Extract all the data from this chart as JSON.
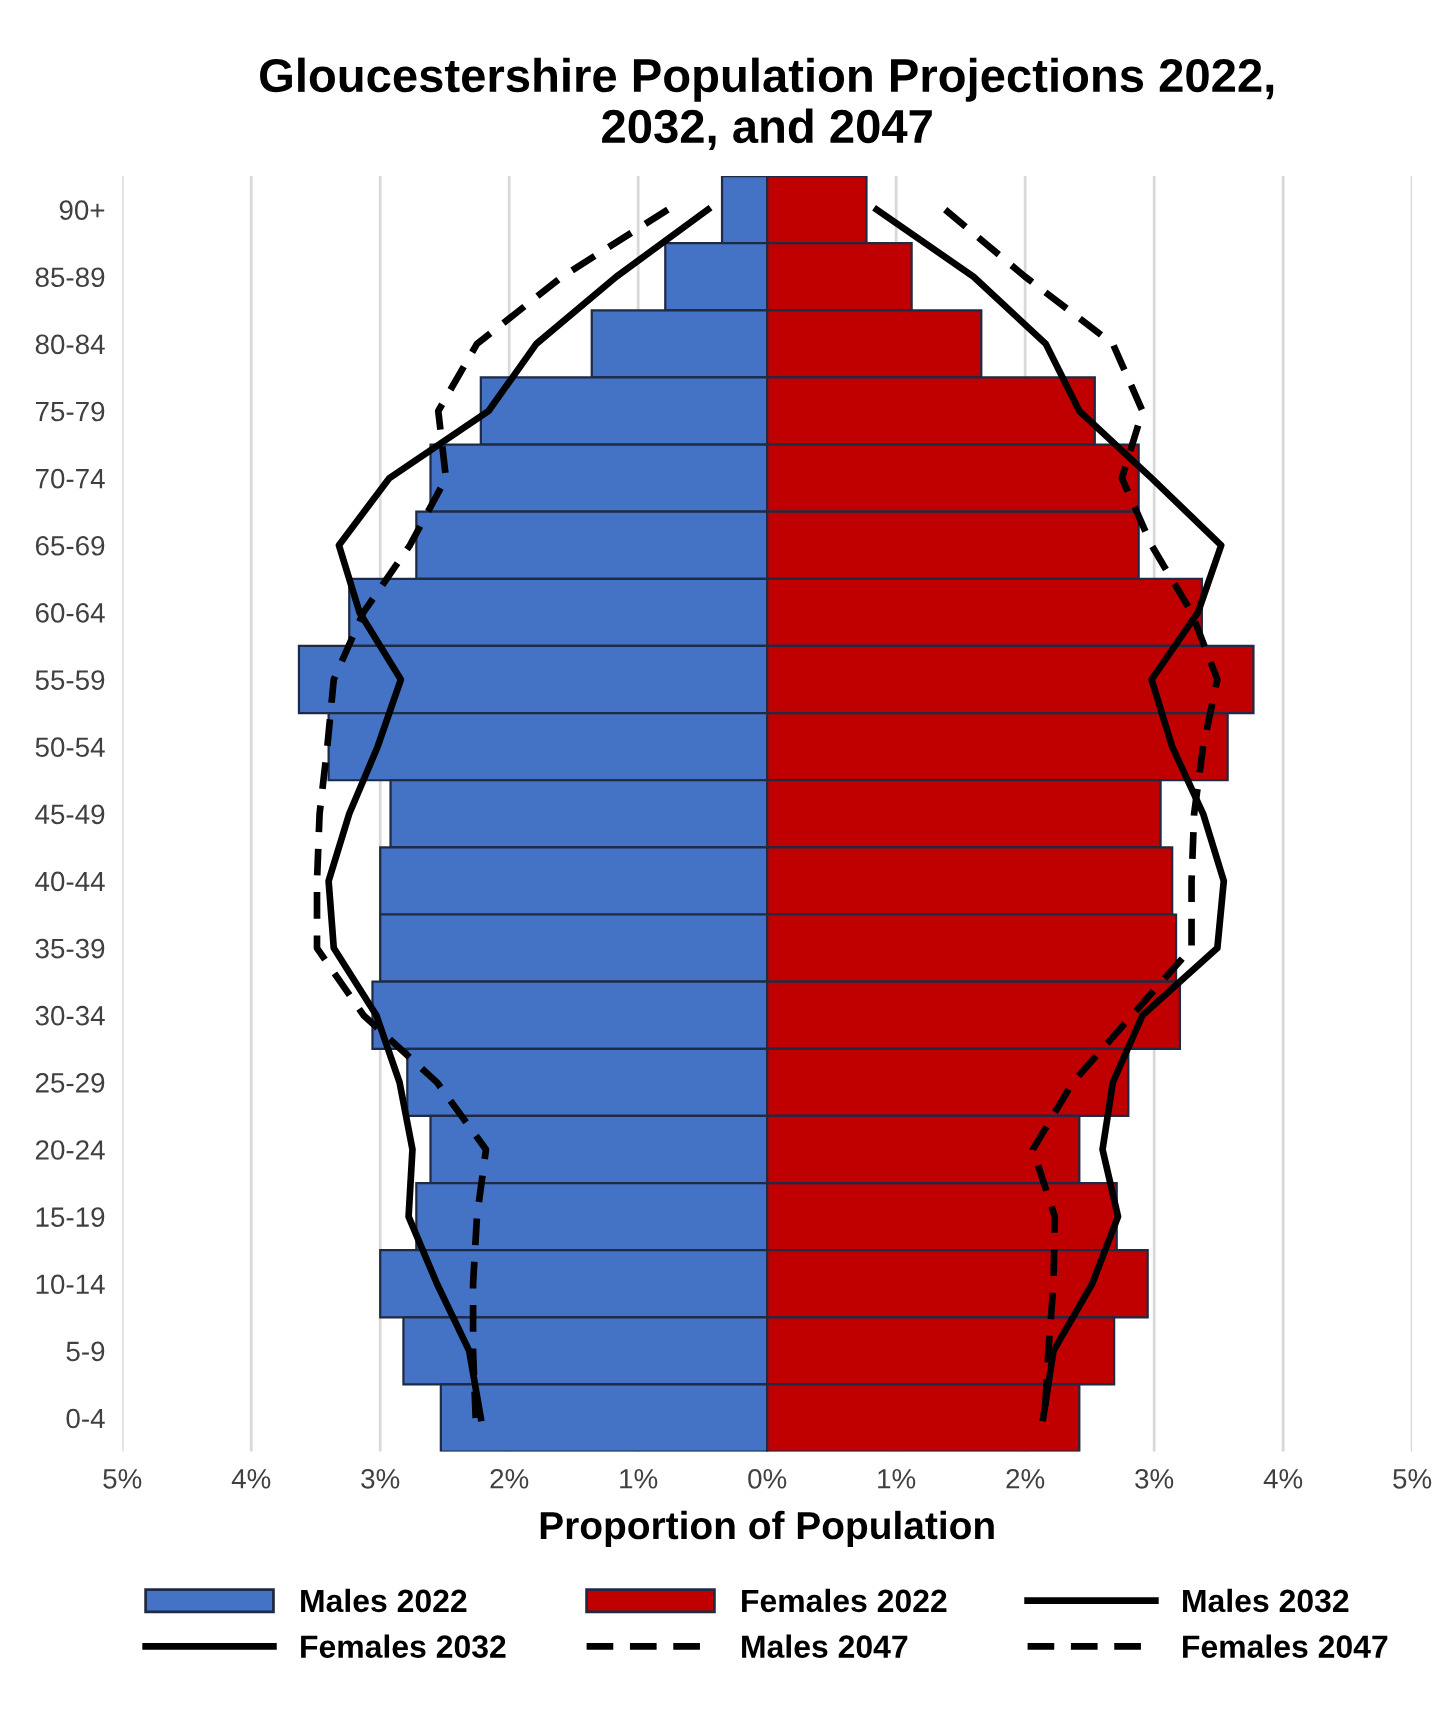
{
  "chart_data": {
    "type": "bar",
    "orientation": "horizontal",
    "title": "Gloucestershire Population Projections 2022,\n2032, and 2047",
    "xlabel": "Proportion of Population",
    "categories": [
      "90+",
      "85-89",
      "80-84",
      "75-79",
      "70-74",
      "65-69",
      "60-64",
      "55-59",
      "50-54",
      "45-49",
      "40-44",
      "35-39",
      "30-34",
      "25-29",
      "20-24",
      "15-19",
      "10-14",
      "5-9",
      "0-4"
    ],
    "series": [
      {
        "name": "Males 2022",
        "color": "#4472c4",
        "values": [
          -0.35,
          -0.79,
          -1.36,
          -2.22,
          -2.61,
          -2.72,
          -3.24,
          -3.63,
          -3.4,
          -2.92,
          -3.0,
          -3.0,
          -3.06,
          -2.79,
          -2.61,
          -2.72,
          -3.0,
          -2.82,
          -2.53
        ]
      },
      {
        "name": "Females 2022",
        "color": "#c00000",
        "values": [
          0.77,
          1.12,
          1.66,
          2.54,
          2.88,
          2.88,
          3.37,
          3.77,
          3.57,
          3.05,
          3.14,
          3.17,
          3.2,
          2.8,
          2.42,
          2.71,
          2.95,
          2.69,
          2.42
        ]
      },
      {
        "name": "Males 2032",
        "type": "line",
        "line_style": "solid",
        "color": "#000000",
        "values": [
          -0.46,
          -1.17,
          -1.79,
          -2.16,
          -2.93,
          -3.32,
          -3.16,
          -2.84,
          -3.02,
          -3.24,
          -3.4,
          -3.36,
          -3.03,
          -2.85,
          -2.75,
          -2.78,
          -2.56,
          -2.31,
          -2.22
        ]
      },
      {
        "name": "Females 2032",
        "type": "line",
        "line_style": "solid",
        "color": "#000000",
        "values": [
          0.85,
          1.6,
          2.16,
          2.42,
          2.98,
          3.52,
          3.34,
          2.98,
          3.14,
          3.38,
          3.54,
          3.49,
          2.91,
          2.68,
          2.6,
          2.72,
          2.52,
          2.22,
          2.14
        ]
      },
      {
        "name": "Males 2047",
        "type": "line",
        "line_style": "dashed",
        "color": "#000000",
        "values": [
          -0.77,
          -1.59,
          -2.25,
          -2.55,
          -2.49,
          -2.77,
          -3.13,
          -3.36,
          -3.41,
          -3.47,
          -3.49,
          -3.49,
          -3.13,
          -2.56,
          -2.18,
          -2.25,
          -2.28,
          -2.28,
          -2.26
        ]
      },
      {
        "name": "Females 2047",
        "type": "line",
        "line_style": "dashed",
        "color": "#000000",
        "values": [
          1.38,
          2.0,
          2.68,
          2.91,
          2.75,
          2.98,
          3.29,
          3.49,
          3.38,
          3.31,
          3.29,
          3.29,
          2.83,
          2.37,
          2.06,
          2.23,
          2.22,
          2.18,
          2.15
        ]
      }
    ],
    "xlim": [
      -5,
      5
    ],
    "xticks": [
      {
        "value": -5,
        "label": "5%"
      },
      {
        "value": -4,
        "label": "4%"
      },
      {
        "value": -3,
        "label": "3%"
      },
      {
        "value": -2,
        "label": "2%"
      },
      {
        "value": -1,
        "label": "1%"
      },
      {
        "value": 0,
        "label": "0%"
      },
      {
        "value": 1,
        "label": "1%"
      },
      {
        "value": 2,
        "label": "2%"
      },
      {
        "value": 3,
        "label": "3%"
      },
      {
        "value": 4,
        "label": "4%"
      },
      {
        "value": 5,
        "label": "5%"
      }
    ],
    "grid": "x",
    "legend": "bottom",
    "stacked": true
  }
}
